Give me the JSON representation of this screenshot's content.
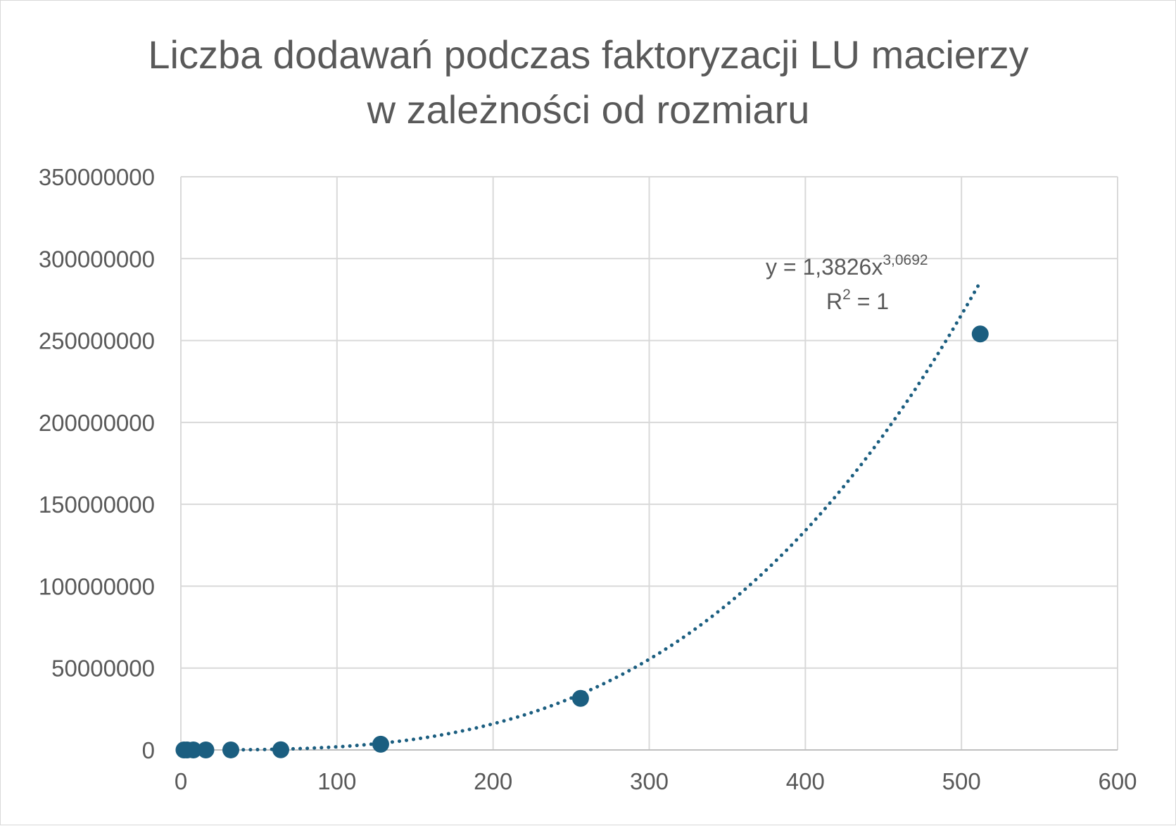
{
  "chart_data": {
    "type": "scatter",
    "title_line1": "Liczba dodawań podczas faktoryzacji LU macierzy",
    "title_line2": "w zależności od rozmiaru",
    "xlim": [
      0,
      600
    ],
    "ylim": [
      0,
      350000000
    ],
    "x_ticks": [
      "0",
      "100",
      "200",
      "300",
      "400",
      "500",
      "600"
    ],
    "y_ticks": [
      "0",
      "50000000",
      "100000000",
      "150000000",
      "200000000",
      "250000000",
      "300000000",
      "350000000"
    ],
    "grid": true,
    "marker_color": "#1b5e80",
    "points": [
      {
        "x": 2,
        "y": 1
      },
      {
        "x": 4,
        "y": 22
      },
      {
        "x": 8,
        "y": 196
      },
      {
        "x": 16,
        "y": 1640
      },
      {
        "x": 32,
        "y": 13400
      },
      {
        "x": 64,
        "y": 108000
      },
      {
        "x": 128,
        "y": 3500000
      },
      {
        "x": 256,
        "y": 31500000
      },
      {
        "x": 512,
        "y": 254000000
      }
    ],
    "trendline": {
      "type": "power",
      "coefficient": 1.3826,
      "exponent": 3.0692,
      "x_range": [
        40,
        512
      ],
      "style": "dotted",
      "equation_main": "y = 1,3826x",
      "equation_exponent": "3,0692",
      "r2_base": "R",
      "r2_exponent": "2",
      "r2_value": " = 1"
    }
  }
}
